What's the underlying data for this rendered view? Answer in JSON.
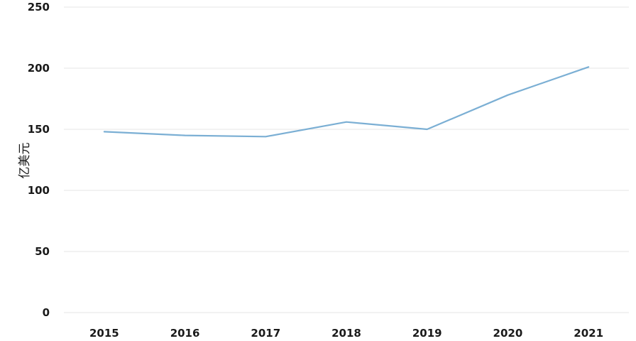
{
  "chart_data": {
    "type": "line",
    "title": "",
    "xlabel": "",
    "ylabel": "亿美元",
    "categories": [
      "2015",
      "2016",
      "2017",
      "2018",
      "2019",
      "2020",
      "2021"
    ],
    "series": [
      {
        "values": [
          148,
          145,
          144,
          156,
          150,
          178,
          201
        ]
      }
    ],
    "ylim": [
      0,
      250
    ],
    "yticks": [
      "0",
      "50",
      "100",
      "150",
      "200",
      "250"
    ],
    "grid": true,
    "legend": "none",
    "colors": {
      "line": "#7BAFD4",
      "grid": "#e6e6e6"
    }
  }
}
